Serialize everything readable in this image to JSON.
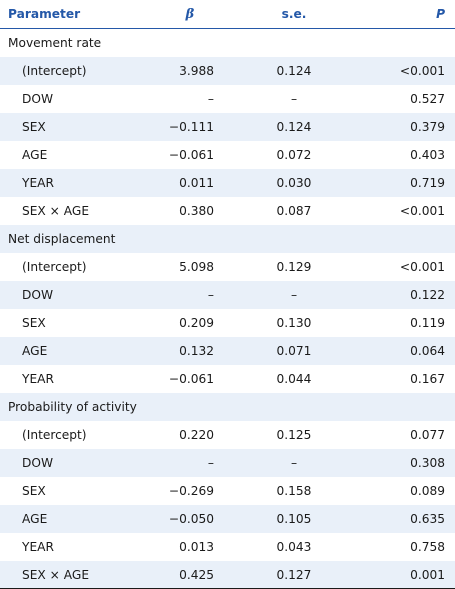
{
  "header": {
    "parameter": "Parameter",
    "beta": "β",
    "se": "s.e.",
    "p": "P"
  },
  "sections": [
    {
      "title": "Movement rate",
      "rows": [
        {
          "param": "(Intercept)",
          "beta": "3.988",
          "se": "0.124",
          "p": "<0.001"
        },
        {
          "param": "DOW",
          "beta": "–",
          "se": "–",
          "p": "0.527"
        },
        {
          "param": "SEX",
          "beta": "−0.111",
          "se": "0.124",
          "p": "0.379"
        },
        {
          "param": "AGE",
          "beta": "−0.061",
          "se": "0.072",
          "p": "0.403"
        },
        {
          "param": "YEAR",
          "beta": "0.011",
          "se": "0.030",
          "p": "0.719"
        },
        {
          "param": "SEX × AGE",
          "beta": "0.380",
          "se": "0.087",
          "p": "<0.001"
        }
      ]
    },
    {
      "title": "Net displacement",
      "rows": [
        {
          "param": "(Intercept)",
          "beta": "5.098",
          "se": "0.129",
          "p": "<0.001"
        },
        {
          "param": "DOW",
          "beta": "–",
          "se": "–",
          "p": "0.122"
        },
        {
          "param": "SEX",
          "beta": "0.209",
          "se": "0.130",
          "p": "0.119"
        },
        {
          "param": "AGE",
          "beta": "0.132",
          "se": "0.071",
          "p": "0.064"
        },
        {
          "param": "YEAR",
          "beta": "−0.061",
          "se": "0.044",
          "p": "0.167"
        }
      ]
    },
    {
      "title": "Probability of activity",
      "rows": [
        {
          "param": "(Intercept)",
          "beta": "0.220",
          "se": "0.125",
          "p": "0.077"
        },
        {
          "param": "DOW",
          "beta": "–",
          "se": "–",
          "p": "0.308"
        },
        {
          "param": "SEX",
          "beta": "−0.269",
          "se": "0.158",
          "p": "0.089"
        },
        {
          "param": "AGE",
          "beta": "−0.050",
          "se": "0.105",
          "p": "0.635"
        },
        {
          "param": "YEAR",
          "beta": "0.013",
          "se": "0.043",
          "p": "0.758"
        },
        {
          "param": "SEX × AGE",
          "beta": "0.425",
          "se": "0.127",
          "p": "0.001"
        }
      ]
    }
  ]
}
